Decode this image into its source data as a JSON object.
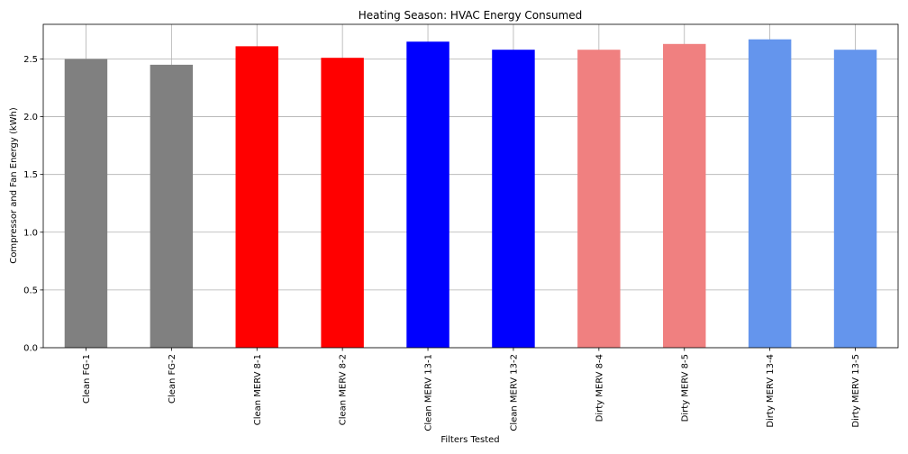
{
  "chart_data": {
    "type": "bar",
    "title": "Heating Season: HVAC Energy Consumed",
    "xlabel": "Filters Tested",
    "ylabel": "Compressor and Fan Energy (kWh)",
    "categories": [
      "Clean FG-1",
      "Clean FG-2",
      "Clean MERV 8-1",
      "Clean MERV 8-2",
      "Clean MERV 13-1",
      "Clean MERV 13-2",
      "Dirty MERV 8-4",
      "Dirty MERV 8-5",
      "Dirty MERV 13-4",
      "Dirty MERV 13-5"
    ],
    "values": [
      2.5,
      2.45,
      2.61,
      2.51,
      2.65,
      2.58,
      2.58,
      2.63,
      2.67,
      2.58
    ],
    "colors": [
      "#808080",
      "#808080",
      "#ff0000",
      "#ff0000",
      "#0000ff",
      "#0000ff",
      "#f08080",
      "#f08080",
      "#6495ed",
      "#6495ed"
    ],
    "ylim": [
      0,
      2.8
    ],
    "yticks": [
      "0.0",
      "0.5",
      "1.0",
      "1.5",
      "2.0",
      "2.5"
    ],
    "grid": true
  }
}
